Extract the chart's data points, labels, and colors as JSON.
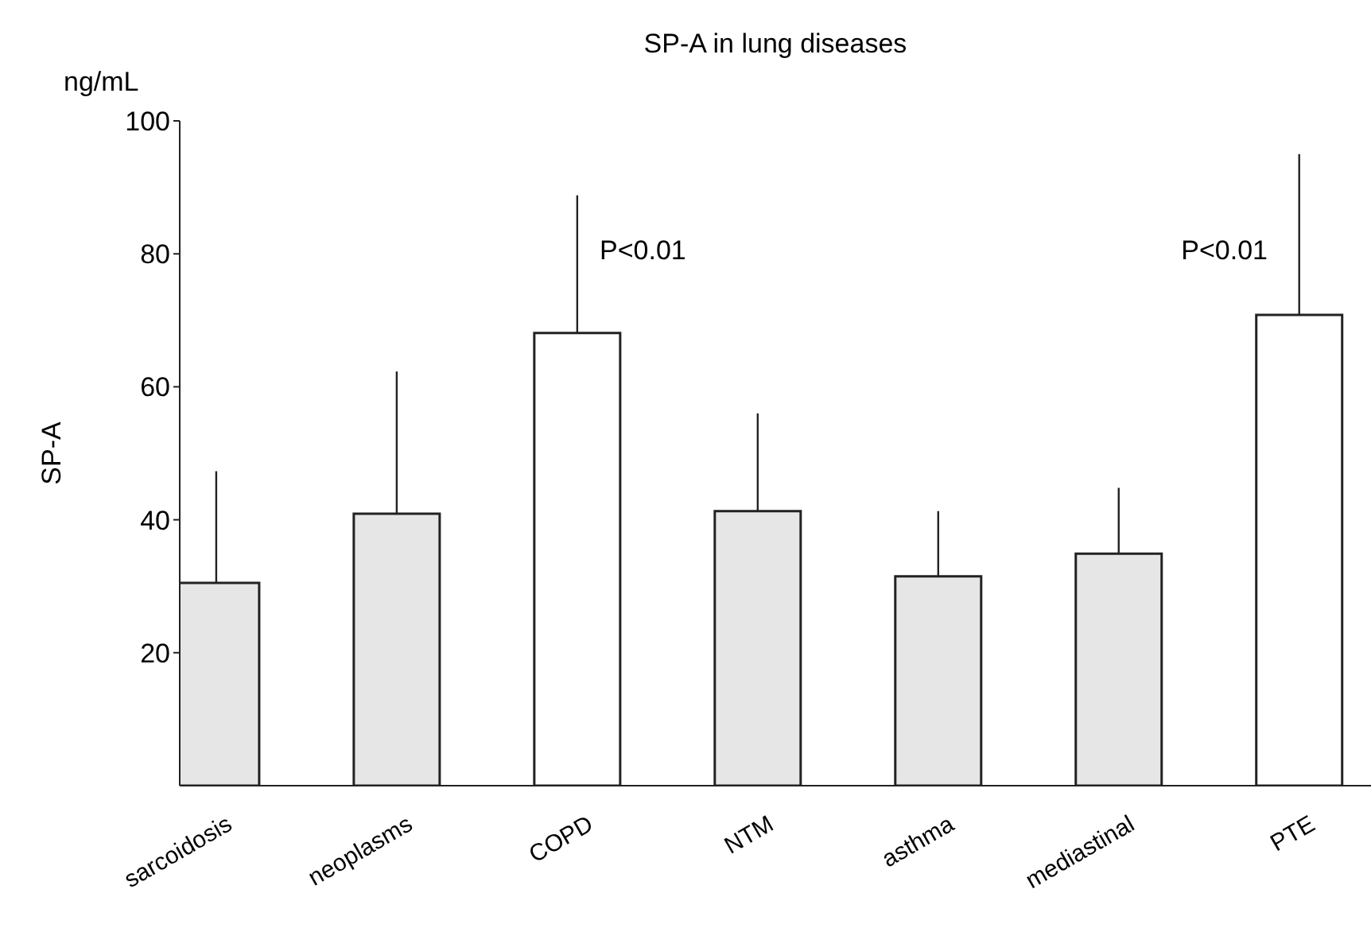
{
  "chart_data": {
    "type": "bar",
    "title": "SP-A in lung diseases",
    "ylabel": "SP-A",
    "categories": [
      "sarcoidosis",
      "neoplasms",
      "COPD",
      "NTM",
      "asthma",
      "mediastinal",
      "PTE"
    ],
    "values": [
      30.5,
      40.9,
      68.1,
      41.3,
      31.5,
      34.9,
      70.8
    ],
    "errors": [
      [
        30.5,
        47.3
      ],
      [
        40.9,
        62.3
      ],
      [
        68.1,
        88.8
      ],
      [
        41.3,
        56
      ],
      [
        31.5,
        41.3
      ],
      [
        34.9,
        44.8
      ],
      [
        70.8,
        95
      ]
    ],
    "colors": [
      "#e6e6e6",
      "#e6e6e6",
      "#ffffff",
      "#e6e6e6",
      "#e6e6e6",
      "#e6e6e6",
      "#ffffff"
    ],
    "ylim": [
      0,
      100
    ],
    "yticks": [
      20,
      40,
      60,
      80,
      100
    ],
    "grid": false,
    "legend": false,
    "annotations": [
      "ng/mL",
      "P<0.01",
      "P<0.01"
    ]
  }
}
